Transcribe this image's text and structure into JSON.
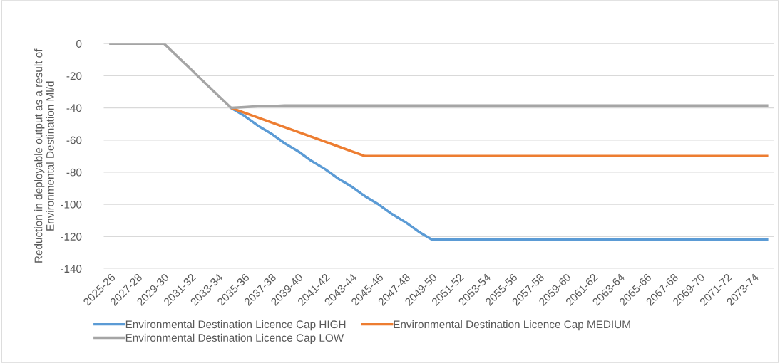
{
  "chart_data": {
    "type": "line",
    "ylabel": "Reduction in deployable output as a result of\nEnvironmental Destination Ml/d",
    "categories": [
      "2025-26",
      null,
      "2027-28",
      null,
      "2029-30",
      null,
      "2031-32",
      null,
      "2033-34",
      null,
      "2035-36",
      null,
      "2037-38",
      null,
      "2039-40",
      null,
      "2041-42",
      null,
      "2043-44",
      null,
      "2045-46",
      null,
      "2047-48",
      null,
      "2049-50",
      null,
      "2051-52",
      null,
      "2053-54",
      null,
      "2055-56",
      null,
      "2057-58",
      null,
      "2059-60",
      null,
      "2061-62",
      null,
      "2063-64",
      null,
      "2065-66",
      null,
      "2067-68",
      null,
      "2069-70",
      null,
      "2071-72",
      null,
      "2073-74",
      null
    ],
    "series": [
      {
        "name": "Environmental Destination Licence Cap HIGH",
        "color": "#5b9bd5",
        "values": [
          null,
          null,
          null,
          null,
          null,
          null,
          null,
          null,
          null,
          -40,
          -45,
          -51,
          -56,
          -62,
          -67,
          -73,
          -78,
          -84,
          -89,
          -95,
          -100,
          -106,
          -111,
          -117,
          -122,
          -122,
          -122,
          -122,
          -122,
          -122,
          -122,
          -122,
          -122,
          -122,
          -122,
          -122,
          -122,
          -122,
          -122,
          -122,
          -122,
          -122,
          -122,
          -122,
          -122,
          -122,
          -122,
          -122,
          -122,
          -122
        ]
      },
      {
        "name": "Environmental Destination Licence Cap MEDIUM",
        "color": "#ed7d31",
        "values": [
          null,
          null,
          null,
          null,
          null,
          null,
          null,
          null,
          null,
          -40,
          -43,
          -46,
          -49,
          -52,
          -55,
          -58,
          -61,
          -64,
          -67,
          -70,
          -70,
          -70,
          -70,
          -70,
          -70,
          -70,
          -70,
          -70,
          -70,
          -70,
          -70,
          -70,
          -70,
          -70,
          -70,
          -70,
          -70,
          -70,
          -70,
          -70,
          -70,
          -70,
          -70,
          -70,
          -70,
          -70,
          -70,
          -70,
          -70,
          -70
        ]
      },
      {
        "name": "Environmental Destination Licence Cap LOW",
        "color": "#a5a5a5",
        "values": [
          0,
          0,
          0,
          0,
          0,
          -8,
          -16,
          -24,
          -32,
          -40,
          -39.5,
          -39,
          -39,
          -38.5,
          -38.5,
          -38.5,
          -38.5,
          -38.5,
          -38.5,
          -38.5,
          -38.5,
          -38.5,
          -38.5,
          -38.5,
          -38.5,
          -38.5,
          -38.5,
          -38.5,
          -38.5,
          -38.5,
          -38.5,
          -38.5,
          -38.5,
          -38.5,
          -38.5,
          -38.5,
          -38.5,
          -38.5,
          -38.5,
          -38.5,
          -38.5,
          -38.5,
          -38.5,
          -38.5,
          -38.5,
          -38.5,
          -38.5,
          -38.5,
          -38.5,
          -38.5
        ]
      }
    ],
    "ylim": [
      -140,
      0
    ],
    "yticks": [
      -140,
      -120,
      -100,
      -80,
      -60,
      -40,
      -20,
      0
    ],
    "grid": "y",
    "legend": "bottom",
    "marker": "none",
    "line_style": "solid"
  }
}
